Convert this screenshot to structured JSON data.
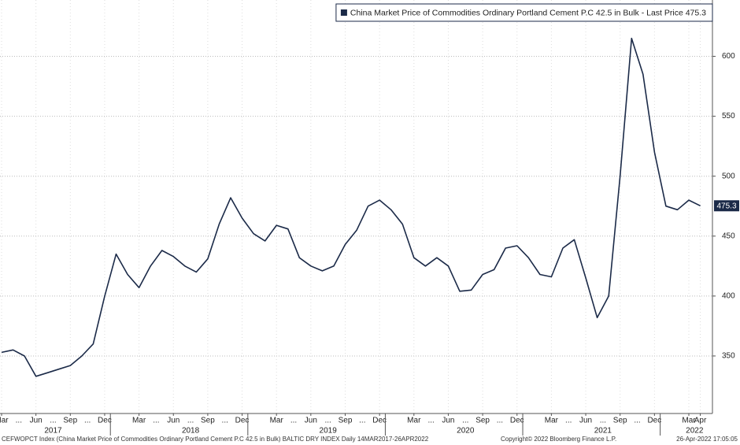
{
  "chart_data": {
    "type": "line",
    "series": [
      {
        "name": "China Market Price of Commodities Ordinary Portland Cement P.C 42.5 in Bulk - Last Price 475.3",
        "color": "#1b2a48",
        "values": [
          353,
          355,
          350,
          333,
          336,
          339,
          342,
          350,
          360,
          400,
          435,
          418,
          407,
          425,
          438,
          433,
          425,
          420,
          431,
          460,
          482,
          465,
          452,
          446,
          459,
          456,
          432,
          425,
          421,
          425,
          443,
          455,
          475,
          480,
          472,
          460,
          432,
          425,
          432,
          425,
          404,
          405,
          418,
          422,
          440,
          442,
          432,
          418,
          416,
          440,
          447,
          415,
          382,
          400,
          500,
          615,
          585,
          520,
          475,
          472,
          480,
          475.3
        ]
      }
    ],
    "x": [
      "2017-03",
      "2017-04",
      "2017-05",
      "2017-06",
      "2017-07",
      "2017-08",
      "2017-09",
      "2017-10",
      "2017-11",
      "2017-12",
      "2018-01",
      "2018-02",
      "2018-03",
      "2018-04",
      "2018-05",
      "2018-06",
      "2018-07",
      "2018-08",
      "2018-09",
      "2018-10",
      "2018-11",
      "2018-12",
      "2019-01",
      "2019-02",
      "2019-03",
      "2019-04",
      "2019-05",
      "2019-06",
      "2019-07",
      "2019-08",
      "2019-09",
      "2019-10",
      "2019-11",
      "2019-12",
      "2020-01",
      "2020-02",
      "2020-03",
      "2020-04",
      "2020-05",
      "2020-06",
      "2020-07",
      "2020-08",
      "2020-09",
      "2020-10",
      "2020-11",
      "2020-12",
      "2021-01",
      "2021-02",
      "2021-03",
      "2021-04",
      "2021-05",
      "2021-06",
      "2021-07",
      "2021-08",
      "2021-09",
      "2021-10",
      "2021-11",
      "2021-12",
      "2022-01",
      "2022-02",
      "2022-03",
      "2022-04"
    ],
    "xticks": [
      {
        "value": "2017-03",
        "label": "Mar"
      },
      {
        "value": "2017-04",
        "label": "..."
      },
      {
        "value": "2017-06",
        "label": "Jun"
      },
      {
        "value": "2017-07",
        "label": "..."
      },
      {
        "value": "2017-09",
        "label": "Sep"
      },
      {
        "value": "2017-10",
        "label": "..."
      },
      {
        "value": "2017-12",
        "label": "Dec"
      },
      {
        "value": "2018-03",
        "label": "Mar"
      },
      {
        "value": "2018-04",
        "label": "..."
      },
      {
        "value": "2018-06",
        "label": "Jun"
      },
      {
        "value": "2018-07",
        "label": "..."
      },
      {
        "value": "2018-09",
        "label": "Sep"
      },
      {
        "value": "2018-10",
        "label": "..."
      },
      {
        "value": "2018-12",
        "label": "Dec"
      },
      {
        "value": "2019-03",
        "label": "Mar"
      },
      {
        "value": "2019-04",
        "label": "..."
      },
      {
        "value": "2019-06",
        "label": "Jun"
      },
      {
        "value": "2019-07",
        "label": "..."
      },
      {
        "value": "2019-09",
        "label": "Sep"
      },
      {
        "value": "2019-10",
        "label": "..."
      },
      {
        "value": "2019-12",
        "label": "Dec"
      },
      {
        "value": "2020-03",
        "label": "Mar"
      },
      {
        "value": "2020-04",
        "label": "..."
      },
      {
        "value": "2020-06",
        "label": "Jun"
      },
      {
        "value": "2020-07",
        "label": "..."
      },
      {
        "value": "2020-09",
        "label": "Sep"
      },
      {
        "value": "2020-10",
        "label": "..."
      },
      {
        "value": "2020-12",
        "label": "Dec"
      },
      {
        "value": "2021-03",
        "label": "Mar"
      },
      {
        "value": "2021-04",
        "label": "..."
      },
      {
        "value": "2021-06",
        "label": "Jun"
      },
      {
        "value": "2021-07",
        "label": "..."
      },
      {
        "value": "2021-09",
        "label": "Sep"
      },
      {
        "value": "2021-10",
        "label": "..."
      },
      {
        "value": "2021-12",
        "label": "Dec"
      },
      {
        "value": "2022-03",
        "label": "Mar"
      },
      {
        "value": "2022-04",
        "label": "Apr"
      }
    ],
    "years": [
      "2017",
      "2018",
      "2019",
      "2020",
      "2021",
      "2022"
    ],
    "ylim": [
      302,
      647
    ],
    "yticks": [
      350,
      400,
      450,
      500,
      550,
      600
    ],
    "grid": true,
    "legend": "top-right",
    "footer": {
      "source": "CEFWOPCT Index (China Market Price of Commodities Ordinary Portland Cement P.C 42.5 in Bulk) BALTIC DRY INDEX  Daily 14MAR2017-26APR2022",
      "copyright": "Copyright© 2022 Bloomberg Finance L.P.",
      "timestamp": "26-Apr-2022 17:05:05"
    }
  }
}
